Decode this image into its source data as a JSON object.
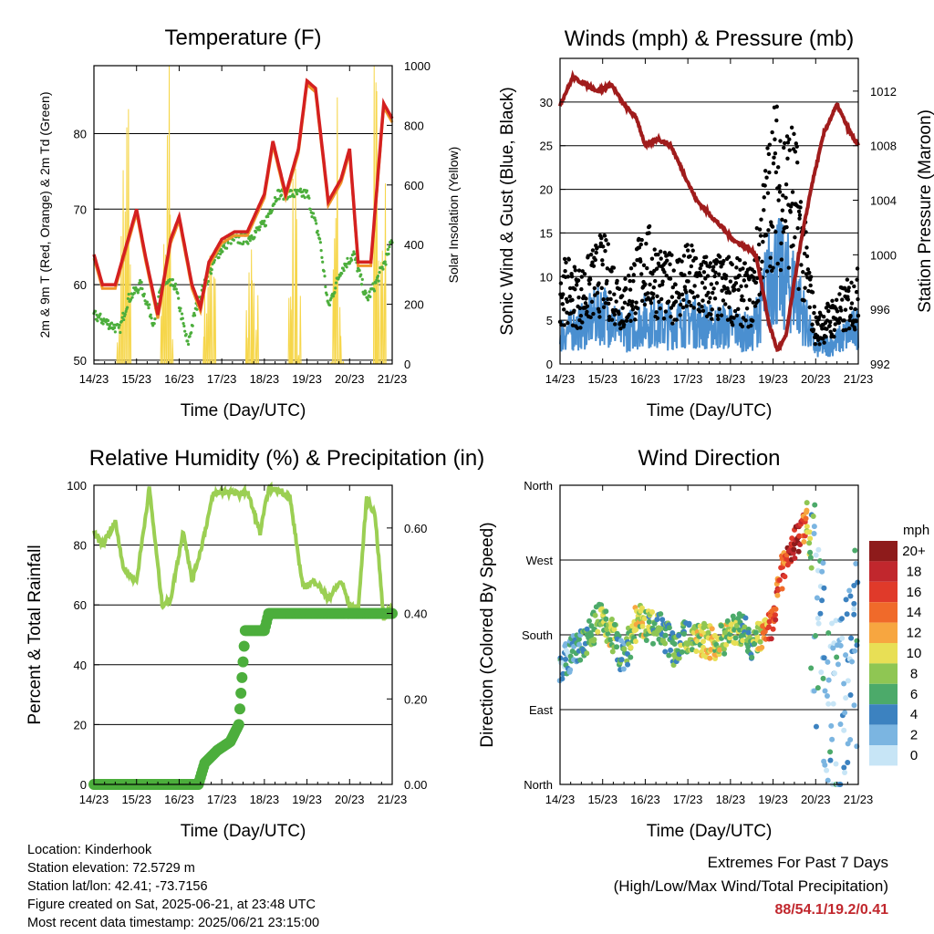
{
  "chart_data": [
    {
      "type": "line",
      "title": "Temperature (F)",
      "xlabel": "Time (Day/UTC)",
      "ylabel": "2m & 9m T (Red, Orange) & 2m Td (Green)",
      "ylabel_right": "Solar Insolation (Yellow)",
      "x_ticks": [
        "14/23",
        "15/23",
        "16/23",
        "17/23",
        "18/23",
        "19/23",
        "20/23",
        "21/23"
      ],
      "ylim": [
        49.5,
        89
      ],
      "y_ticks": [
        50,
        60,
        70,
        80
      ],
      "ylim_right": [
        0,
        1000
      ],
      "y_ticks_right": [
        0,
        200,
        400,
        600,
        800,
        1000
      ],
      "grid": true,
      "colors": {
        "t2m": "#d42020",
        "t9m": "#f0952a",
        "td": "#4cae3c",
        "solar": "#f6d64a"
      },
      "series": [
        {
          "name": "2m T",
          "x": [
            0,
            0.2,
            0.5,
            0.8,
            1.0,
            1.2,
            1.5,
            1.8,
            2.0,
            2.3,
            2.5,
            2.7,
            3.0,
            3.3,
            3.6,
            4.0,
            4.2,
            4.5,
            4.8,
            5.0,
            5.2,
            5.5,
            5.8,
            6.0,
            6.2,
            6.5,
            6.8,
            7.0
          ],
          "values": [
            64,
            60,
            60,
            66,
            70,
            64,
            56,
            66,
            69,
            60,
            57,
            63,
            66,
            67,
            67,
            72,
            79,
            72,
            78,
            87,
            86,
            71,
            74,
            78,
            63,
            63,
            84,
            82
          ]
        },
        {
          "name": "2m Td",
          "x": [
            0,
            0.3,
            0.6,
            0.8,
            1.1,
            1.4,
            1.6,
            1.9,
            2.2,
            2.4,
            2.6,
            2.9,
            3.2,
            3.6,
            4.0,
            4.3,
            4.6,
            5.0,
            5.3,
            5.5,
            5.8,
            6.1,
            6.4,
            6.6,
            6.9,
            7.0
          ],
          "values": [
            56,
            55,
            54,
            58,
            60,
            55,
            60,
            60,
            52,
            57,
            60,
            64,
            66,
            66,
            68,
            72,
            72,
            72,
            66,
            57,
            62,
            64,
            58,
            60,
            64,
            66
          ]
        },
        {
          "name": "Solar Insolation",
          "x": [
            0,
            0.6,
            0.7,
            0.8,
            0.9,
            1.6,
            1.7,
            1.75,
            1.85,
            2.6,
            2.7,
            2.8,
            3.6,
            3.7,
            3.8,
            4.6,
            4.7,
            4.8,
            5.6,
            5.7,
            5.8,
            6.5,
            6.6,
            6.7
          ],
          "values": [
            0,
            0,
            600,
            900,
            0,
            0,
            700,
            1000,
            0,
            0,
            280,
            150,
            0,
            380,
            0,
            0,
            900,
            0,
            0,
            800,
            0,
            0,
            950,
            300
          ]
        }
      ]
    },
    {
      "type": "line",
      "title": "Winds (mph) & Pressure (mb)",
      "xlabel": "Time (Day/UTC)",
      "ylabel": "Sonic Wind & Gust (Blue, Black)",
      "ylabel_right": "Station Pressure (Maroon)",
      "x_ticks": [
        "14/23",
        "15/23",
        "16/23",
        "17/23",
        "18/23",
        "19/23",
        "20/23",
        "21/23"
      ],
      "ylim": [
        0,
        35
      ],
      "y_ticks": [
        0,
        5,
        10,
        15,
        20,
        25,
        30
      ],
      "ylim_right": [
        992,
        1014.4
      ],
      "y_ticks_right": [
        992,
        996,
        1000,
        1004,
        1008,
        1012
      ],
      "grid": true,
      "colors": {
        "wind": "#4a8fd0",
        "gust": "#000000",
        "pressure": "#a01c1c"
      },
      "series": [
        {
          "name": "Station Pressure",
          "x": [
            0,
            0.3,
            0.6,
            0.9,
            1.2,
            1.5,
            1.8,
            2.0,
            2.3,
            2.6,
            2.9,
            3.2,
            3.5,
            3.8,
            4.1,
            4.4,
            4.6,
            4.9,
            5.1,
            5.3,
            5.6,
            5.9,
            6.2,
            6.5,
            6.8,
            7.0
          ],
          "values": [
            1011,
            1013,
            1012.5,
            1012,
            1012.5,
            1011,
            1010,
            1008,
            1008.5,
            1008,
            1006,
            1004,
            1003,
            1002,
            1001,
            1000.5,
            1000,
            995,
            993,
            994,
            1000,
            1005,
            1009,
            1011,
            1009,
            1008
          ]
        },
        {
          "name": "Sonic Wind",
          "x": [
            0,
            0.5,
            1.0,
            1.5,
            2.0,
            2.5,
            3.0,
            3.5,
            4.0,
            4.5,
            5.0,
            5.5,
            6.0,
            6.5,
            7.0
          ],
          "values": [
            4,
            5,
            7,
            4,
            6,
            5,
            6,
            5,
            5,
            4,
            13,
            10,
            2,
            3,
            5
          ]
        },
        {
          "name": "Gust",
          "x": [
            0,
            0.5,
            1.0,
            1.5,
            2.0,
            2.5,
            3.0,
            3.5,
            4.0,
            4.5,
            5.0,
            5.5,
            6.0,
            6.5,
            7.0
          ],
          "values": [
            9,
            8,
            11,
            7,
            12,
            9,
            10,
            9,
            9,
            8,
            22,
            20,
            4,
            6,
            8
          ]
        }
      ]
    },
    {
      "type": "line",
      "title": "Relative Humidity (%) & Precipitation (in)",
      "xlabel": "Time (Day/UTC)",
      "ylabel": "Percent & Total Rainfall",
      "x_ticks": [
        "14/23",
        "15/23",
        "16/23",
        "17/23",
        "18/23",
        "19/23",
        "20/23",
        "21/23"
      ],
      "ylim": [
        0,
        100
      ],
      "y_ticks": [
        0,
        20,
        40,
        60,
        80,
        100
      ],
      "ylim_right": [
        0,
        0.7
      ],
      "y_ticks_right": [
        "0.00",
        "0.20",
        "0.40",
        "0.60"
      ],
      "grid": true,
      "colors": {
        "rh": "#9bcf53",
        "precip": "#4cae3c"
      },
      "series": [
        {
          "name": "Relative Humidity",
          "x": [
            0,
            0.2,
            0.5,
            0.7,
            1.0,
            1.3,
            1.6,
            1.8,
            2.1,
            2.3,
            2.5,
            2.8,
            3.1,
            3.4,
            3.6,
            3.9,
            4.1,
            4.4,
            4.6,
            4.9,
            5.2,
            5.5,
            5.8,
            6.0,
            6.2,
            6.4,
            6.6,
            6.8,
            7.0
          ],
          "values": [
            84,
            80,
            88,
            72,
            68,
            99,
            60,
            62,
            85,
            68,
            78,
            97,
            98,
            97,
            98,
            84,
            99,
            98,
            96,
            66,
            68,
            62,
            68,
            60,
            58,
            96,
            90,
            55,
            60
          ]
        },
        {
          "name": "Total Precipitation",
          "x": [
            0,
            1.0,
            2.0,
            2.45,
            2.6,
            2.9,
            3.2,
            3.4,
            3.55,
            4.0,
            4.1,
            5.0,
            6.0,
            7.0
          ],
          "values": [
            0,
            0,
            0,
            0,
            0.05,
            0.08,
            0.1,
            0.14,
            0.36,
            0.36,
            0.4,
            0.4,
            0.4,
            0.4
          ]
        }
      ]
    },
    {
      "type": "scatter",
      "title": "Wind Direction",
      "xlabel": "Time (Day/UTC)",
      "ylabel": "Direction (Colored By Speed)",
      "x_ticks": [
        "14/23",
        "15/23",
        "16/23",
        "17/23",
        "18/23",
        "19/23",
        "20/23",
        "21/23"
      ],
      "y_ticks": [
        "North",
        "East",
        "South",
        "West",
        "North"
      ],
      "ylim": [
        0,
        360
      ],
      "grid": true,
      "legend": {
        "title": "mph",
        "labels": [
          "20+",
          "18",
          "16",
          "14",
          "12",
          "10",
          "8",
          "6",
          "4",
          "2",
          "0"
        ],
        "colors": [
          "#8e1b1b",
          "#c1272d",
          "#e03a2a",
          "#f06a2a",
          "#f7a640",
          "#e8df55",
          "#8fc653",
          "#4caa6a",
          "#3c82c0",
          "#7bb5e1",
          "#c7e5f6"
        ]
      },
      "series": [
        {
          "name": "Wind Direction",
          "x": [
            0,
            0.3,
            0.6,
            0.9,
            1.2,
            1.5,
            1.8,
            2.1,
            2.4,
            2.7,
            3.0,
            3.3,
            3.6,
            3.9,
            4.2,
            4.5,
            4.8,
            5.0,
            5.2,
            5.4,
            5.6,
            5.8,
            6.0,
            6.2,
            6.4,
            6.6,
            6.8,
            7.0
          ],
          "values": [
            140,
            160,
            170,
            200,
            185,
            150,
            200,
            190,
            185,
            160,
            180,
            175,
            170,
            175,
            190,
            170,
            180,
            195,
            260,
            280,
            300,
            320,
            200,
            120,
            90,
            70,
            150,
            180
          ],
          "speed": [
            3,
            4,
            6,
            8,
            9,
            5,
            10,
            7,
            6,
            6,
            7,
            9,
            10,
            8,
            8,
            6,
            12,
            16,
            14,
            17,
            20,
            10,
            2,
            3,
            2,
            3,
            2,
            4
          ]
        }
      ]
    }
  ],
  "info": {
    "location": "Location: Kinderhook",
    "elevation": "Station elevation: 72.5729 m",
    "latlon": "Station lat/lon: 42.41; -73.7156",
    "created": "Figure created on Sat, 2025-06-21, at 23:48 UTC",
    "recent": "Most recent data timestamp: 2025/06/21 23:15:00"
  },
  "extremes": {
    "title": "Extremes For Past 7 Days",
    "subtitle": "(High/Low/Max Wind/Total Precipitation)",
    "values": "88/54.1/19.2/0.41"
  }
}
